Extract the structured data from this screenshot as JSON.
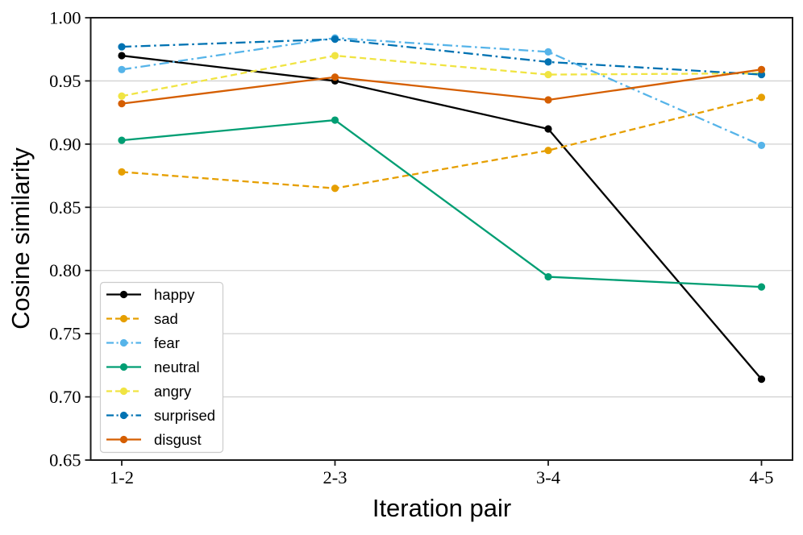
{
  "chart_data": {
    "type": "line",
    "title": "",
    "xlabel": "Iteration pair",
    "ylabel": "Cosine similarity",
    "categories": [
      "1-2",
      "2-3",
      "3-4",
      "4-5"
    ],
    "x": [
      1,
      2,
      3,
      4
    ],
    "ylim": [
      0.65,
      1.0
    ],
    "ytick_step": 0.05,
    "yticks": [
      1.0,
      0.95,
      0.9,
      0.85,
      0.8,
      0.75,
      0.7,
      0.65
    ],
    "ytick_labels": [
      "1.00",
      "0.95",
      "0.90",
      "0.85",
      "0.80",
      "0.75",
      "0.70",
      "0.65"
    ],
    "grid": "horizontal-only",
    "legend_position": "lower-left",
    "marker": "circle",
    "series": [
      {
        "name": "happy",
        "color": "#000000",
        "style": "solid",
        "values": [
          0.97,
          0.95,
          0.912,
          0.714
        ]
      },
      {
        "name": "sad",
        "color": "#E69F00",
        "style": "dashed",
        "values": [
          0.878,
          0.865,
          0.895,
          0.937
        ]
      },
      {
        "name": "fear",
        "color": "#56B4E9",
        "style": "dashdot",
        "values": [
          0.959,
          0.984,
          0.973,
          0.899
        ]
      },
      {
        "name": "neutral",
        "color": "#009E73",
        "style": "solid",
        "values": [
          0.903,
          0.919,
          0.795,
          0.787
        ]
      },
      {
        "name": "angry",
        "color": "#F0E442",
        "style": "dashed",
        "values": [
          0.938,
          0.97,
          0.955,
          0.956
        ]
      },
      {
        "name": "surprised",
        "color": "#0072B2",
        "style": "dashdot",
        "values": [
          0.977,
          0.983,
          0.965,
          0.955
        ]
      },
      {
        "name": "disgust",
        "color": "#D55E00",
        "style": "solid",
        "values": [
          0.932,
          0.953,
          0.935,
          0.959
        ]
      }
    ],
    "colors": {
      "gridline": "#d2d2d2",
      "spine": "#1a1a1a",
      "text": "#000000",
      "legend_border": "#cccccc",
      "legend_background": "#ffffff"
    }
  }
}
